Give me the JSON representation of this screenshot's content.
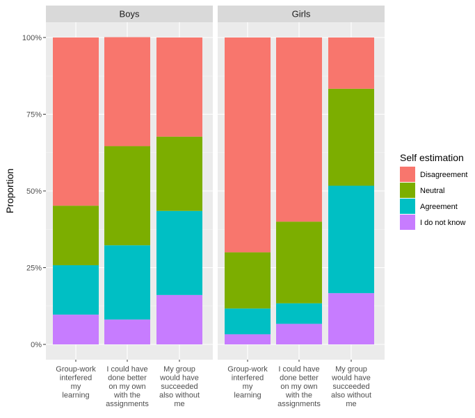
{
  "chart_data": {
    "type": "bar",
    "stacked": true,
    "ylabel": "Proportion",
    "ylim": [
      0,
      1
    ],
    "yticks": [
      0,
      0.25,
      0.5,
      0.75,
      1
    ],
    "ytick_labels": [
      "0%",
      "25%",
      "50%",
      "75%",
      "100%"
    ],
    "grid": true,
    "legend": {
      "title": "Self estimation",
      "position": "right",
      "entries": [
        "Disagreement",
        "Neutral",
        "Agreement",
        "I do not know"
      ]
    },
    "colors": {
      "Disagreement": "#F8766D",
      "Neutral": "#7CAE00",
      "Agreement": "#00BFC4",
      "I do not know": "#C77CFF"
    },
    "categories": [
      "Group-work interfered my learning",
      "I could have done better on my own with the assignments",
      "My group would have succeeded also without me"
    ],
    "category_lines": [
      [
        "Group-work",
        "interfered",
        "my",
        "learning"
      ],
      [
        "I could have",
        "done better",
        "on my own",
        "with the",
        "assignments"
      ],
      [
        "My group",
        "would have",
        "succeeded",
        "also without",
        "me"
      ]
    ],
    "stack_order_bottom_to_top": [
      "I do not know",
      "Agreement",
      "Neutral",
      "Disagreement"
    ],
    "panels": [
      {
        "name": "Boys",
        "series": [
          {
            "name": "I do not know",
            "values": [
              0.097,
              0.081,
              0.161
            ]
          },
          {
            "name": "Agreement",
            "values": [
              0.161,
              0.242,
              0.274
            ]
          },
          {
            "name": "Neutral",
            "values": [
              0.194,
              0.323,
              0.242
            ]
          },
          {
            "name": "Disagreement",
            "values": [
              0.548,
              0.355,
              0.323
            ]
          }
        ]
      },
      {
        "name": "Girls",
        "series": [
          {
            "name": "I do not know",
            "values": [
              0.033,
              0.067,
              0.167
            ]
          },
          {
            "name": "Agreement",
            "values": [
              0.084,
              0.067,
              0.35
            ]
          },
          {
            "name": "Neutral",
            "values": [
              0.183,
              0.266,
              0.316
            ]
          },
          {
            "name": "Disagreement",
            "values": [
              0.7,
              0.6,
              0.167
            ]
          }
        ]
      }
    ]
  }
}
